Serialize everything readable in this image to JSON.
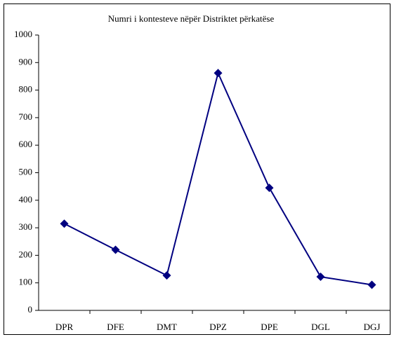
{
  "chart_data": {
    "type": "line",
    "title": "Numri i kontesteve nëpër Distriktet përkatëse",
    "categories": [
      "DPR",
      "DFE",
      "DMT",
      "DPZ",
      "DPE",
      "DGL",
      "DGJ"
    ],
    "series": [
      {
        "name": null,
        "color": "#000080",
        "values": [
          315,
          220,
          127,
          862,
          445,
          122,
          93
        ]
      }
    ],
    "ylim": [
      0,
      1000
    ],
    "yticks": [
      0,
      100,
      200,
      300,
      400,
      500,
      600,
      700,
      800,
      900,
      1000
    ],
    "grid": false
  }
}
